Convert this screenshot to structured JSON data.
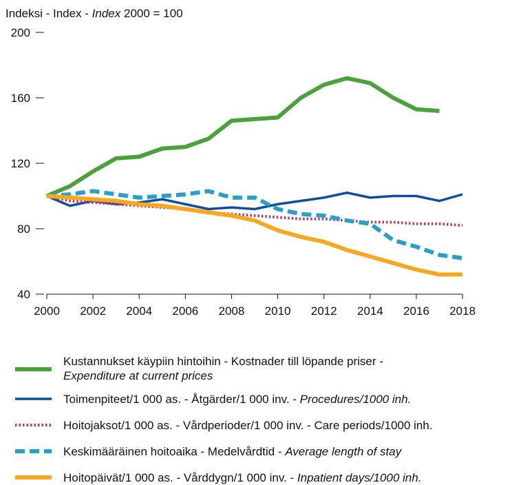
{
  "chart_data": {
    "type": "line",
    "ylabel": [
      "Indeksi - Index - ",
      "Index",
      " 2000 = 100"
    ],
    "ylabel_italic": [
      false,
      true,
      false
    ],
    "x": [
      2000,
      2001,
      2002,
      2003,
      2004,
      2005,
      2006,
      2007,
      2008,
      2009,
      2010,
      2011,
      2012,
      2013,
      2014,
      2015,
      2016,
      2017,
      2018
    ],
    "xlim": [
      2000,
      2018
    ],
    "xticks": [
      2000,
      2002,
      2004,
      2006,
      2008,
      2010,
      2012,
      2014,
      2016,
      2018
    ],
    "ylim": [
      40,
      200
    ],
    "yticks": [
      40,
      80,
      120,
      160,
      200
    ],
    "grid": false,
    "legend": "bottom",
    "series": [
      {
        "name": "Kustannukset käypiin hintoihin - Kostnader till löpande priser - Expenditure at current prices",
        "color": "#4ba23a",
        "style": "solid",
        "italic_last": true,
        "wrap_last": true,
        "values": [
          100,
          106,
          115,
          123,
          124,
          129,
          130,
          135,
          146,
          147,
          148,
          160,
          168,
          172,
          169,
          160,
          153,
          152,
          null
        ]
      },
      {
        "name": "Toimenpiteet/1 000 as. - Åtgärder/1 000 inv. - Procedures/1000 inh.",
        "color": "#0c4e9e",
        "style": "solid-thin",
        "italic_last": true,
        "wrap_last": false,
        "values": [
          100,
          94,
          97,
          95,
          96,
          98,
          95,
          92,
          93,
          92,
          95,
          97,
          99,
          102,
          99,
          100,
          100,
          97,
          101
        ]
      },
      {
        "name": "Hoitojaksot/1 000 as. - Vårdperioder/1 000 inv. - Care periods/1000 inh.",
        "color": "#b03a6a",
        "style": "dotted",
        "italic_last": false,
        "wrap_last": false,
        "values": [
          100,
          97,
          96,
          95,
          94,
          93,
          92,
          90,
          89,
          88,
          87,
          86,
          86,
          85,
          84,
          84,
          83,
          83,
          82
        ]
      },
      {
        "name": "Keskimääräinen hoitoaika - Medelvårdtid - Average length of stay",
        "color": "#2aa0c8",
        "style": "dashed",
        "italic_last": true,
        "wrap_last": false,
        "values": [
          100,
          101,
          103,
          101,
          99,
          100,
          101,
          103,
          99,
          99,
          92,
          89,
          88,
          85,
          83,
          73,
          69,
          64,
          62
        ]
      },
      {
        "name": "Hoitopäivät/1 000 as. - Vårddygn/1 000 inv. - Inpatient days/1000 inh.",
        "color": "#f7a823",
        "style": "solid",
        "italic_last": true,
        "wrap_last": false,
        "values": [
          100,
          99,
          98,
          97,
          95,
          94,
          92,
          90,
          88,
          85,
          79,
          75,
          72,
          67,
          63,
          59,
          55,
          52,
          52
        ]
      }
    ]
  }
}
